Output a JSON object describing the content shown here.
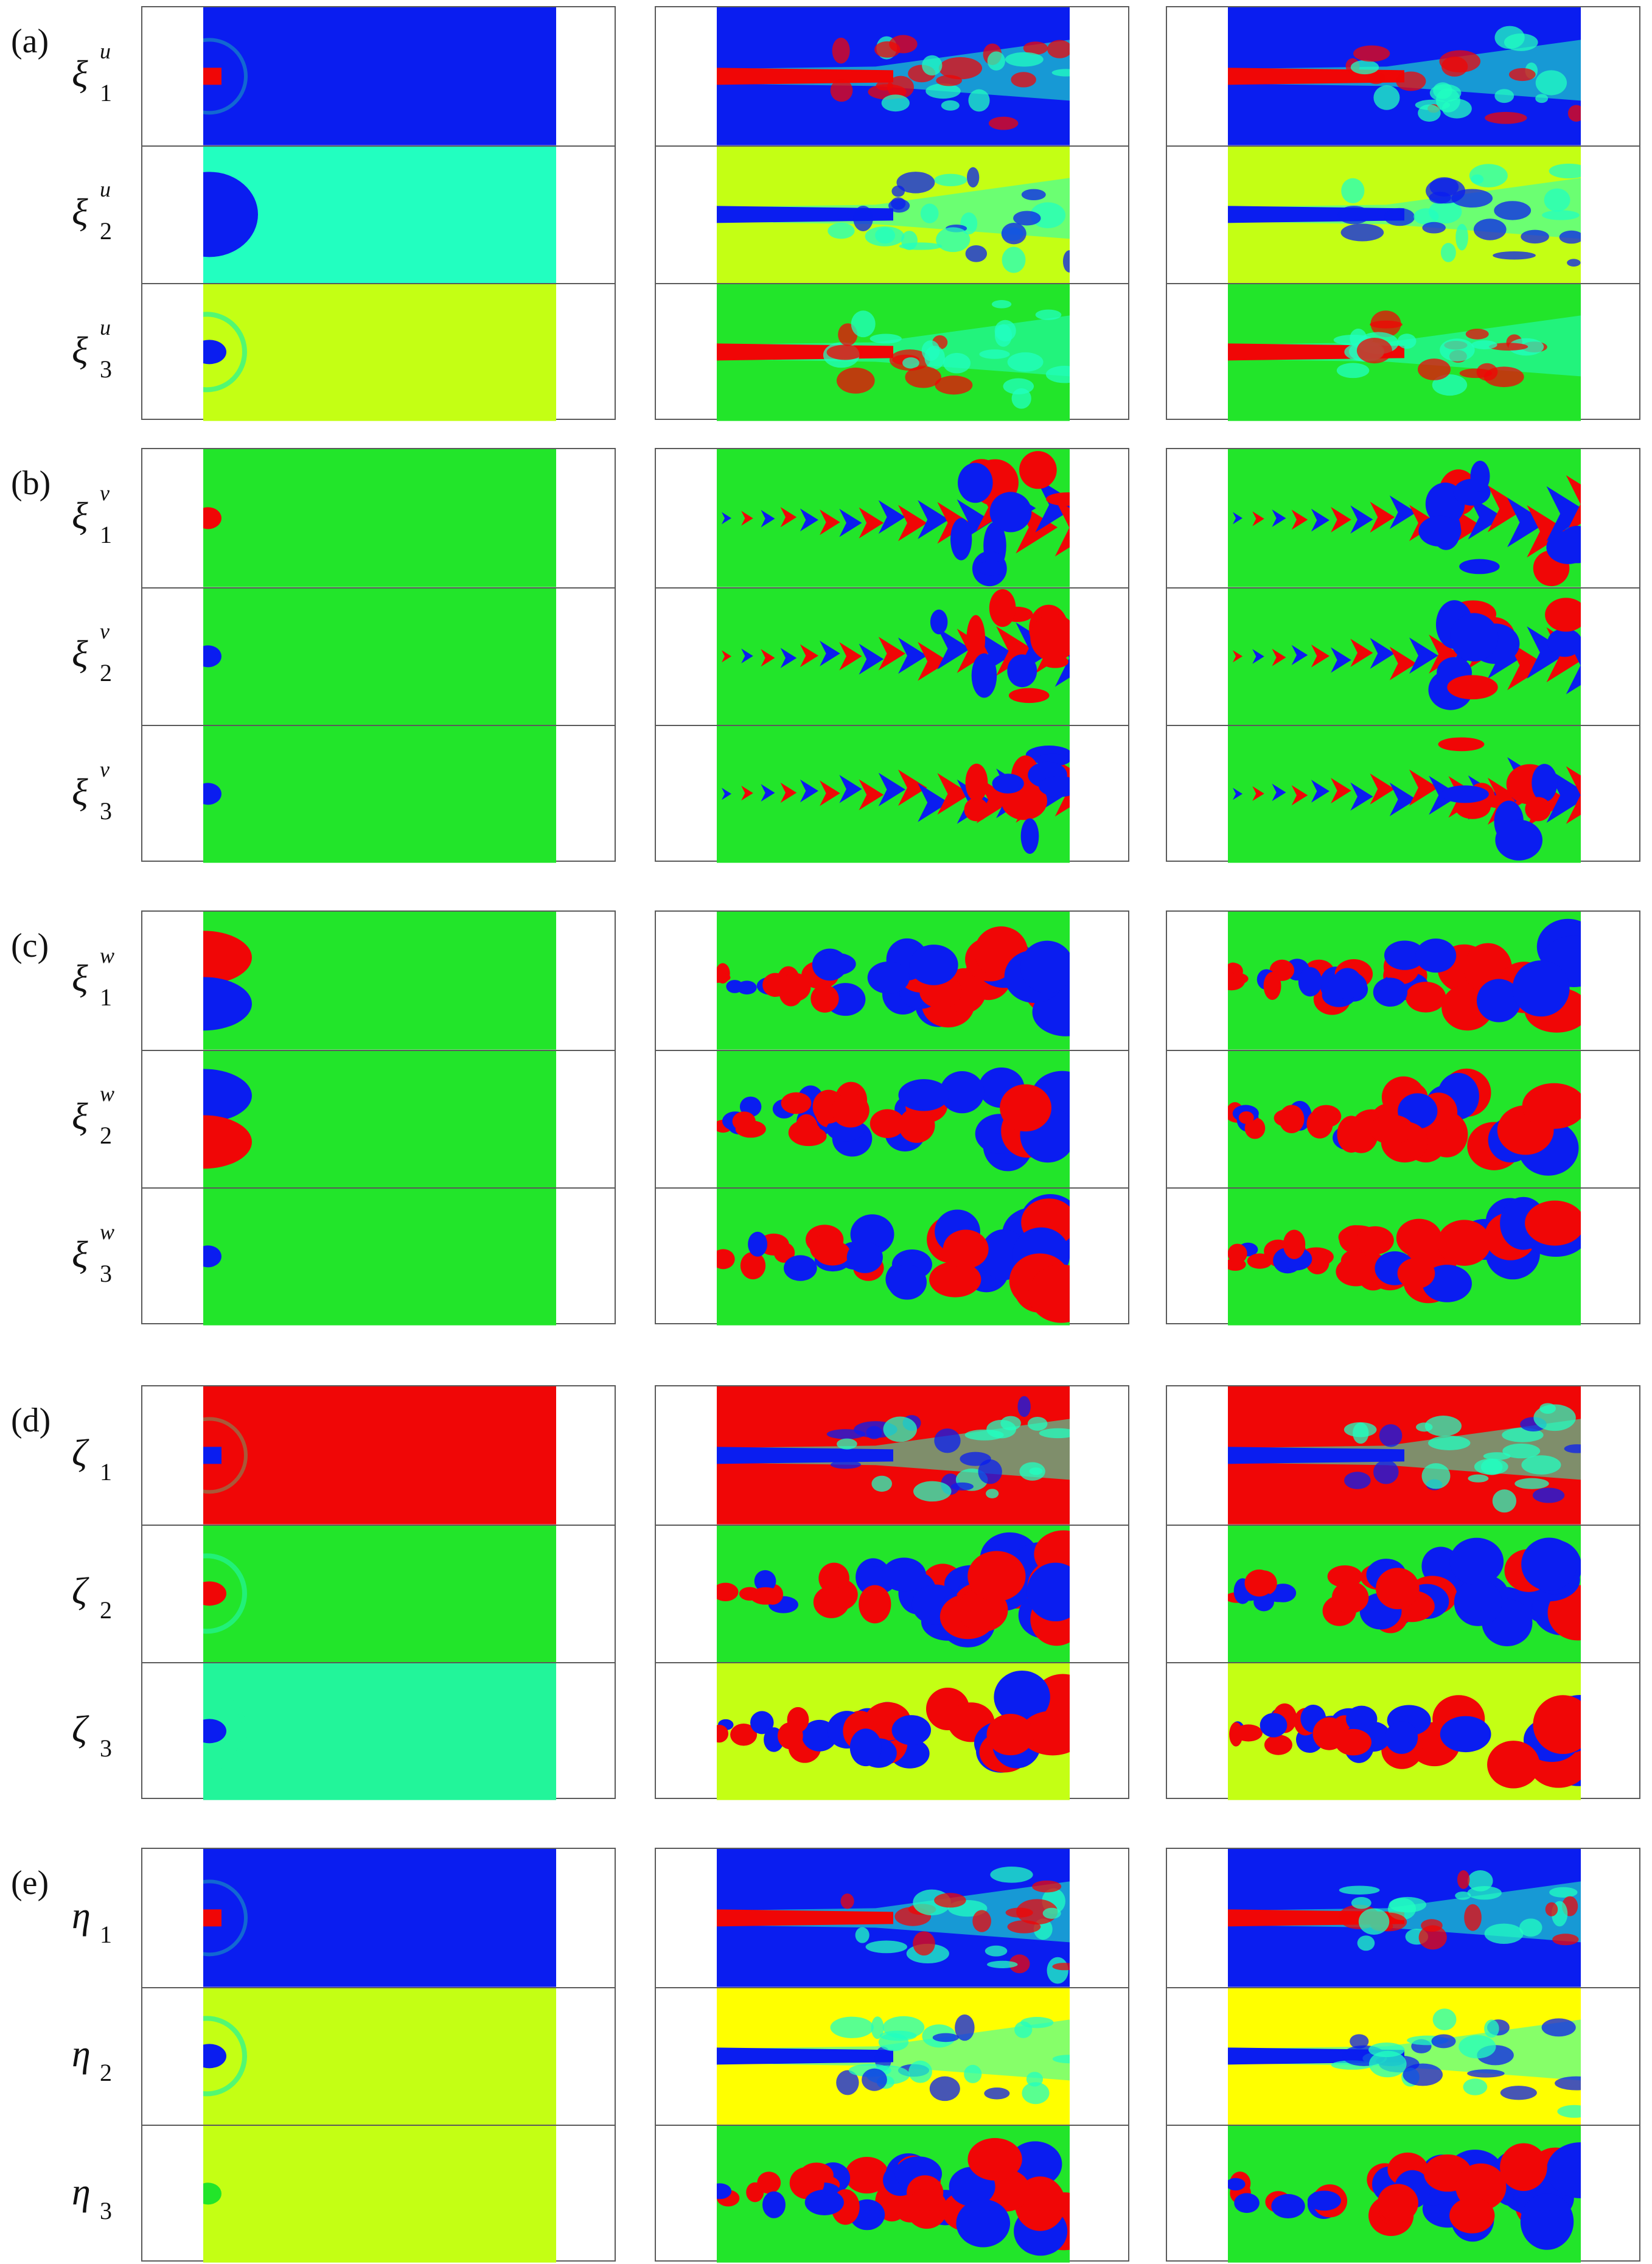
{
  "palette": {
    "blue": "#0a1df0",
    "cyan": "#22ffc0",
    "teal": "#22f59a",
    "green": "#22e52a",
    "yellowgreen": "#c4ff14",
    "yellow": "#ffff00",
    "orange": "#ffa500",
    "red": "#f00606",
    "lightblue": "#40c8ff"
  },
  "groups": [
    {
      "label": "(a)",
      "rows": [
        {
          "symbol": "ξ",
          "sup": "u",
          "sub": "1"
        },
        {
          "symbol": "ξ",
          "sup": "u",
          "sub": "2"
        },
        {
          "symbol": "ξ",
          "sup": "u",
          "sub": "3"
        }
      ]
    },
    {
      "label": "(b)",
      "rows": [
        {
          "symbol": "ξ",
          "sup": "v",
          "sub": "1"
        },
        {
          "symbol": "ξ",
          "sup": "v",
          "sub": "2"
        },
        {
          "symbol": "ξ",
          "sup": "v",
          "sub": "3"
        }
      ]
    },
    {
      "label": "(c)",
      "rows": [
        {
          "symbol": "ξ",
          "sup": "w",
          "sub": "1"
        },
        {
          "symbol": "ξ",
          "sup": "w",
          "sub": "2"
        },
        {
          "symbol": "ξ",
          "sup": "w",
          "sub": "3"
        }
      ]
    },
    {
      "label": "(d)",
      "rows": [
        {
          "symbol": "ζ",
          "sup": "",
          "sub": "1"
        },
        {
          "symbol": "ζ",
          "sup": "",
          "sub": "2"
        },
        {
          "symbol": "ζ",
          "sup": "",
          "sub": "3"
        }
      ]
    },
    {
      "label": "(e)",
      "rows": [
        {
          "symbol": "η",
          "sup": "",
          "sub": "1"
        },
        {
          "symbol": "η",
          "sup": "",
          "sub": "2"
        },
        {
          "symbol": "η",
          "sup": "",
          "sub": "3"
        }
      ]
    }
  ],
  "fields": [
    [
      [
        {
          "bg": "blue",
          "jet": "red",
          "pattern": "stream"
        },
        {
          "bg": "blue",
          "jet": "red",
          "pattern": "stream"
        },
        {
          "bg": "blue",
          "jet": "red",
          "pattern": "stream"
        }
      ],
      [
        {
          "bg": "cyan",
          "jet": "blue",
          "pattern": "dipole-bubble"
        },
        {
          "bg": "yellowgreen",
          "jet": "blue",
          "pattern": "stream"
        },
        {
          "bg": "yellowgreen",
          "jet": "blue",
          "pattern": "stream"
        }
      ],
      [
        {
          "bg": "yellowgreen",
          "jet": "blue",
          "pattern": "bubble"
        },
        {
          "bg": "green",
          "jet": "red",
          "pattern": "stream"
        },
        {
          "bg": "green",
          "jet": "red",
          "pattern": "stream"
        }
      ]
    ],
    [
      [
        {
          "bg": "green",
          "jet": "red",
          "pattern": "dot"
        },
        {
          "bg": "green",
          "jet": "red",
          "pattern": "chevrons"
        },
        {
          "bg": "green",
          "jet": "red",
          "pattern": "chevrons"
        }
      ],
      [
        {
          "bg": "green",
          "jet": "blue",
          "pattern": "dot"
        },
        {
          "bg": "green",
          "jet": "blue",
          "pattern": "chevrons"
        },
        {
          "bg": "green",
          "jet": "blue",
          "pattern": "chevrons"
        }
      ],
      [
        {
          "bg": "green",
          "jet": "blue",
          "pattern": "dot"
        },
        {
          "bg": "green",
          "jet": "red",
          "pattern": "chevrons"
        },
        {
          "bg": "green",
          "jet": "red",
          "pattern": "chevrons"
        }
      ]
    ],
    [
      [
        {
          "bg": "green",
          "jet": "red",
          "pattern": "dipole"
        },
        {
          "bg": "green",
          "jet": "blue",
          "pattern": "blobs"
        },
        {
          "bg": "green",
          "jet": "blue",
          "pattern": "blobs"
        }
      ],
      [
        {
          "bg": "green",
          "jet": "blue",
          "pattern": "dipole"
        },
        {
          "bg": "green",
          "jet": "red",
          "pattern": "blobs"
        },
        {
          "bg": "green",
          "jet": "red",
          "pattern": "blobs"
        }
      ],
      [
        {
          "bg": "green",
          "jet": "blue",
          "pattern": "dot"
        },
        {
          "bg": "green",
          "jet": "red",
          "pattern": "blobs"
        },
        {
          "bg": "green",
          "jet": "red",
          "pattern": "blobs"
        }
      ]
    ],
    [
      [
        {
          "bg": "red",
          "jet": "blue",
          "pattern": "stream"
        },
        {
          "bg": "red",
          "jet": "blue",
          "pattern": "stream"
        },
        {
          "bg": "red",
          "jet": "blue",
          "pattern": "stream"
        }
      ],
      [
        {
          "bg": "green",
          "jet": "red",
          "pattern": "bubble"
        },
        {
          "bg": "green",
          "jet": "red",
          "pattern": "blobs"
        },
        {
          "bg": "green",
          "jet": "red",
          "pattern": "blobs"
        }
      ],
      [
        {
          "bg": "teal",
          "jet": "blue",
          "pattern": "bubble"
        },
        {
          "bg": "yellowgreen",
          "jet": "blue",
          "pattern": "blobs"
        },
        {
          "bg": "yellowgreen",
          "jet": "blue",
          "pattern": "blobs"
        }
      ]
    ],
    [
      [
        {
          "bg": "blue",
          "jet": "red",
          "pattern": "stream"
        },
        {
          "bg": "blue",
          "jet": "red",
          "pattern": "stream"
        },
        {
          "bg": "blue",
          "jet": "red",
          "pattern": "stream"
        }
      ],
      [
        {
          "bg": "yellowgreen",
          "jet": "blue",
          "pattern": "bubble"
        },
        {
          "bg": "yellow",
          "jet": "blue",
          "pattern": "stream"
        },
        {
          "bg": "yellow",
          "jet": "blue",
          "pattern": "stream"
        }
      ],
      [
        {
          "bg": "yellowgreen",
          "jet": "green",
          "pattern": "dot"
        },
        {
          "bg": "green",
          "jet": "red",
          "pattern": "blobs"
        },
        {
          "bg": "green",
          "jet": "red",
          "pattern": "blobs"
        }
      ]
    ]
  ]
}
